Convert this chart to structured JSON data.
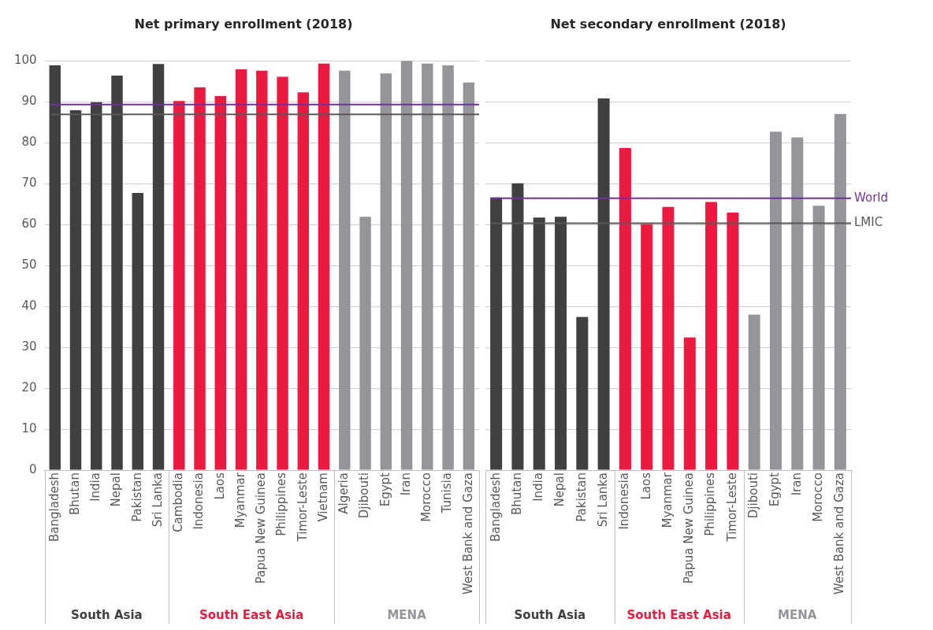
{
  "chart_data": [
    {
      "type": "bar",
      "title": "Net primary enrollment (2018)",
      "categories": [
        "Bangladesh",
        "Bhutan",
        "India",
        "Nepal",
        "Pakistan",
        "Sri Lanka",
        "Cambodia",
        "Indonesia",
        "Laos",
        "Myanmar",
        "Papua New Guinea",
        "Philippines",
        "Timor-Leste",
        "Vietnam",
        "Algeria",
        "Djibouti",
        "Egypt",
        "Iran",
        "Morocco",
        "Tunisia",
        "West Bank and Gaza"
      ],
      "series": [
        {
          "name": "South Asia",
          "color": "#404040",
          "values": [
            98.9,
            87.9,
            89.9,
            96.4,
            67.7,
            99.2,
            null,
            null,
            null,
            null,
            null,
            null,
            null,
            null,
            null,
            null,
            null,
            null,
            null,
            null,
            null
          ]
        },
        {
          "name": "South East Asia",
          "color": "#ec1a40",
          "values": [
            null,
            null,
            null,
            null,
            null,
            null,
            90.2,
            93.5,
            91.4,
            97.9,
            97.6,
            96.1,
            92.3,
            99.3,
            null,
            null,
            null,
            null,
            null,
            null,
            null
          ]
        },
        {
          "name": "MENA",
          "color": "#939598",
          "values": [
            null,
            null,
            null,
            null,
            null,
            null,
            null,
            null,
            null,
            null,
            null,
            null,
            null,
            null,
            97.6,
            61.9,
            96.9,
            100,
            99.3,
            98.9,
            94.7
          ]
        }
      ],
      "ylim": [
        0,
        100
      ],
      "yticks": [
        0,
        10,
        20,
        30,
        40,
        50,
        60,
        70,
        80,
        90,
        100
      ],
      "grid": "y",
      "legend": false,
      "ref_lines": [
        {
          "axis": "y",
          "value": 89.3,
          "color": "#7030a0"
        },
        {
          "axis": "y",
          "value": 86.9,
          "color": "#595959"
        }
      ]
    },
    {
      "type": "bar",
      "title": "Net secondary enrollment (2018)",
      "categories": [
        "Bangladesh",
        "Bhutan",
        "India",
        "Nepal",
        "Pakistan",
        "Sri Lanka",
        "Indonesia",
        "Laos",
        "Myanmar",
        "Papua New Guinea",
        "Philippines",
        "Timor-Leste",
        "Djibouti",
        "Egypt",
        "Iran",
        "Morocco",
        "West Bank and Gaza"
      ],
      "series": [
        {
          "name": "South Asia",
          "color": "#404040",
          "values": [
            66.6,
            70.1,
            61.7,
            61.9,
            37.4,
            90.8,
            null,
            null,
            null,
            null,
            null,
            null,
            null,
            null,
            null,
            null,
            null
          ]
        },
        {
          "name": "South East Asia",
          "color": "#ec1a40",
          "values": [
            null,
            null,
            null,
            null,
            null,
            null,
            78.7,
            60.1,
            64.3,
            32.4,
            65.5,
            62.9,
            null,
            null,
            null,
            null,
            null
          ]
        },
        {
          "name": "MENA",
          "color": "#939598",
          "values": [
            null,
            null,
            null,
            null,
            null,
            null,
            null,
            null,
            null,
            null,
            null,
            null,
            38,
            82.7,
            81.3,
            64.6,
            87
          ]
        }
      ],
      "ylim": [
        0,
        100
      ],
      "yticks": [
        0,
        10,
        20,
        30,
        40,
        50,
        60,
        70,
        80,
        90,
        100
      ],
      "grid": "y",
      "legend": false,
      "tick_labels": "x",
      "ref_lines": [
        {
          "axis": "y",
          "value": 66.4,
          "label": "World",
          "color": "#7030a0"
        },
        {
          "axis": "y",
          "value": 60.3,
          "label": "LMIC",
          "color": "#595959"
        }
      ]
    }
  ]
}
